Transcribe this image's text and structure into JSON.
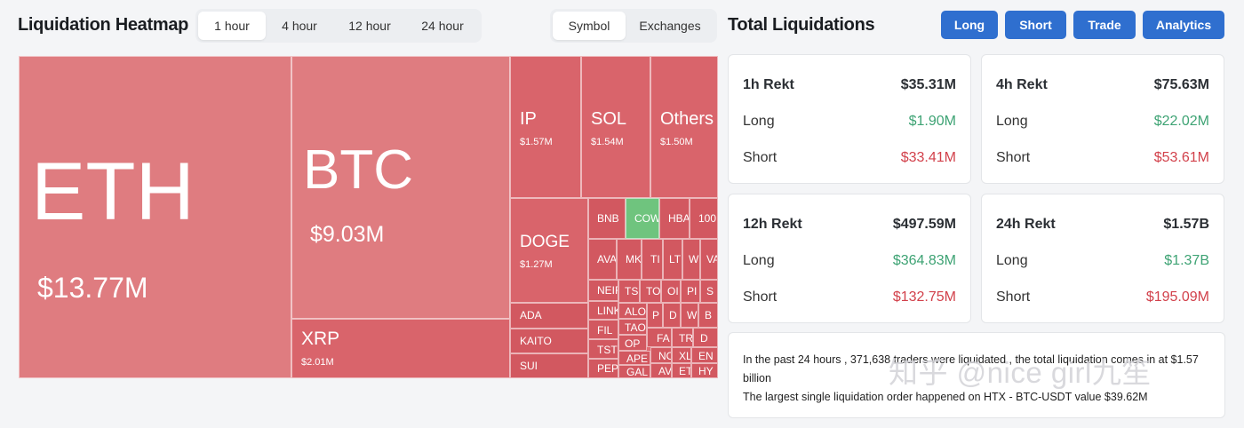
{
  "header": {
    "title": "Liquidation Heatmap",
    "time_tabs": [
      "1 hour",
      "4 hour",
      "12 hour",
      "24 hour"
    ],
    "active_time_tab": "1 hour",
    "type_tabs": [
      "Symbol",
      "Exchanges"
    ],
    "active_type_tab": "Symbol"
  },
  "totals": {
    "title": "Total Liquidations",
    "nav": [
      "Long",
      "Short",
      "Trade",
      "Analytics"
    ],
    "cards": [
      {
        "period": "1h Rekt",
        "total": "$35.31M",
        "long_label": "Long",
        "long": "$1.90M",
        "short_label": "Short",
        "short": "$33.41M"
      },
      {
        "period": "4h Rekt",
        "total": "$75.63M",
        "long_label": "Long",
        "long": "$22.02M",
        "short_label": "Short",
        "short": "$53.61M"
      },
      {
        "period": "12h Rekt",
        "total": "$497.59M",
        "long_label": "Long",
        "long": "$364.83M",
        "short_label": "Short",
        "short": "$132.75M"
      },
      {
        "period": "24h Rekt",
        "total": "$1.57B",
        "long_label": "Long",
        "long": "$1.37B",
        "short_label": "Short",
        "short": "$195.09M"
      }
    ],
    "info_line1": "In the past 24 hours , 371,638 traders were liquidated , the total liquidation comes in at $1.57 billion",
    "info_line2": "The largest single liquidation order happened on HTX - BTC-USDT value $39.62M"
  },
  "heatmap": {
    "cells": [
      {
        "symbol": "ETH",
        "value": "$13.77M"
      },
      {
        "symbol": "BTC",
        "value": "$9.03M"
      },
      {
        "symbol": "XRP",
        "value": "$2.01M"
      },
      {
        "symbol": "IP",
        "value": "$1.57M"
      },
      {
        "symbol": "SOL",
        "value": "$1.54M"
      },
      {
        "symbol": "Others",
        "value": "$1.50M"
      },
      {
        "symbol": "DOGE",
        "value": "$1.27M"
      },
      {
        "symbol": "ADA",
        "value": ""
      },
      {
        "symbol": "KAITO",
        "value": ""
      },
      {
        "symbol": "SUI",
        "value": ""
      },
      {
        "symbol": "BNB",
        "value": ""
      },
      {
        "symbol": "COW",
        "value": ""
      },
      {
        "symbol": "HBA",
        "value": ""
      },
      {
        "symbol": "100",
        "value": ""
      },
      {
        "symbol": "AVA",
        "value": ""
      },
      {
        "symbol": "MK",
        "value": ""
      },
      {
        "symbol": "TI",
        "value": ""
      },
      {
        "symbol": "LT",
        "value": ""
      },
      {
        "symbol": "WI",
        "value": ""
      },
      {
        "symbol": "VA",
        "value": ""
      },
      {
        "symbol": "NEIR",
        "value": ""
      },
      {
        "symbol": "TS",
        "value": ""
      },
      {
        "symbol": "TO",
        "value": ""
      },
      {
        "symbol": "OI",
        "value": ""
      },
      {
        "symbol": "PI",
        "value": ""
      },
      {
        "symbol": "S",
        "value": ""
      },
      {
        "symbol": "LINK",
        "value": ""
      },
      {
        "symbol": "ALO",
        "value": ""
      },
      {
        "symbol": "P",
        "value": ""
      },
      {
        "symbol": "D",
        "value": ""
      },
      {
        "symbol": "W",
        "value": ""
      },
      {
        "symbol": "B",
        "value": ""
      },
      {
        "symbol": "FIL",
        "value": ""
      },
      {
        "symbol": "TAO",
        "value": ""
      },
      {
        "symbol": "F",
        "value": ""
      },
      {
        "symbol": "TST",
        "value": ""
      },
      {
        "symbol": "OP",
        "value": ""
      },
      {
        "symbol": "FA",
        "value": ""
      },
      {
        "symbol": "TR",
        "value": ""
      },
      {
        "symbol": "D",
        "value": ""
      },
      {
        "symbol": "PEPE",
        "value": ""
      },
      {
        "symbol": "APE",
        "value": ""
      },
      {
        "symbol": "NO",
        "value": ""
      },
      {
        "symbol": "XL",
        "value": ""
      },
      {
        "symbol": "EN",
        "value": ""
      },
      {
        "symbol": "GAL",
        "value": ""
      },
      {
        "symbol": "AV",
        "value": ""
      },
      {
        "symbol": "ET",
        "value": ""
      },
      {
        "symbol": "HY",
        "value": ""
      }
    ]
  },
  "watermark": "知乎 @nice girl九笙",
  "colors": {
    "accent": "#2f6fcf",
    "long_green": "#3ea374",
    "short_red": "#d2414b",
    "heat_light": "#df7c80",
    "heat_dark": "#d25860",
    "heat_green": "#6fc47e"
  }
}
